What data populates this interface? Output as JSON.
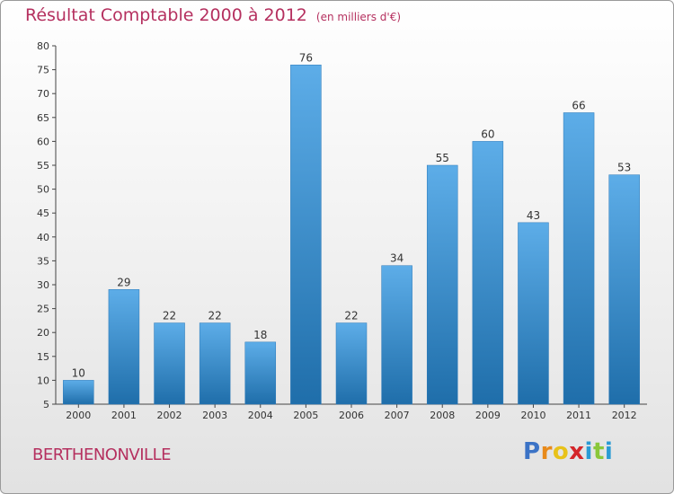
{
  "title": "Résultat Comptable 2000 à 2012",
  "subtitle": "(en milliers d'€)",
  "location": "BERTHENONVILLE",
  "logo": {
    "letters": [
      "P",
      "r",
      "o",
      "x",
      "i",
      "t",
      "i"
    ],
    "colors": [
      "#3b73c6",
      "#e88a1a",
      "#e8c21a",
      "#d4262a",
      "#2a9bd4",
      "#8ac73a",
      "#2a9bd4"
    ]
  },
  "colors": {
    "bar_light": "#5dade8",
    "bar_dark": "#1f6eaa",
    "title": "#b5305f"
  },
  "chart_data": {
    "type": "bar",
    "title": "Résultat Comptable 2000 à 2012",
    "xlabel": "",
    "ylabel": "",
    "ylim": [
      5,
      80
    ],
    "yticks": [
      5,
      10,
      15,
      20,
      25,
      30,
      35,
      40,
      45,
      50,
      55,
      60,
      65,
      70,
      75,
      80
    ],
    "grid": false,
    "categories": [
      "2000",
      "2001",
      "2002",
      "2003",
      "2004",
      "2005",
      "2006",
      "2007",
      "2008",
      "2009",
      "2010",
      "2011",
      "2012"
    ],
    "values": [
      10,
      29,
      22,
      22,
      18,
      76,
      22,
      34,
      55,
      60,
      43,
      66,
      53
    ]
  }
}
